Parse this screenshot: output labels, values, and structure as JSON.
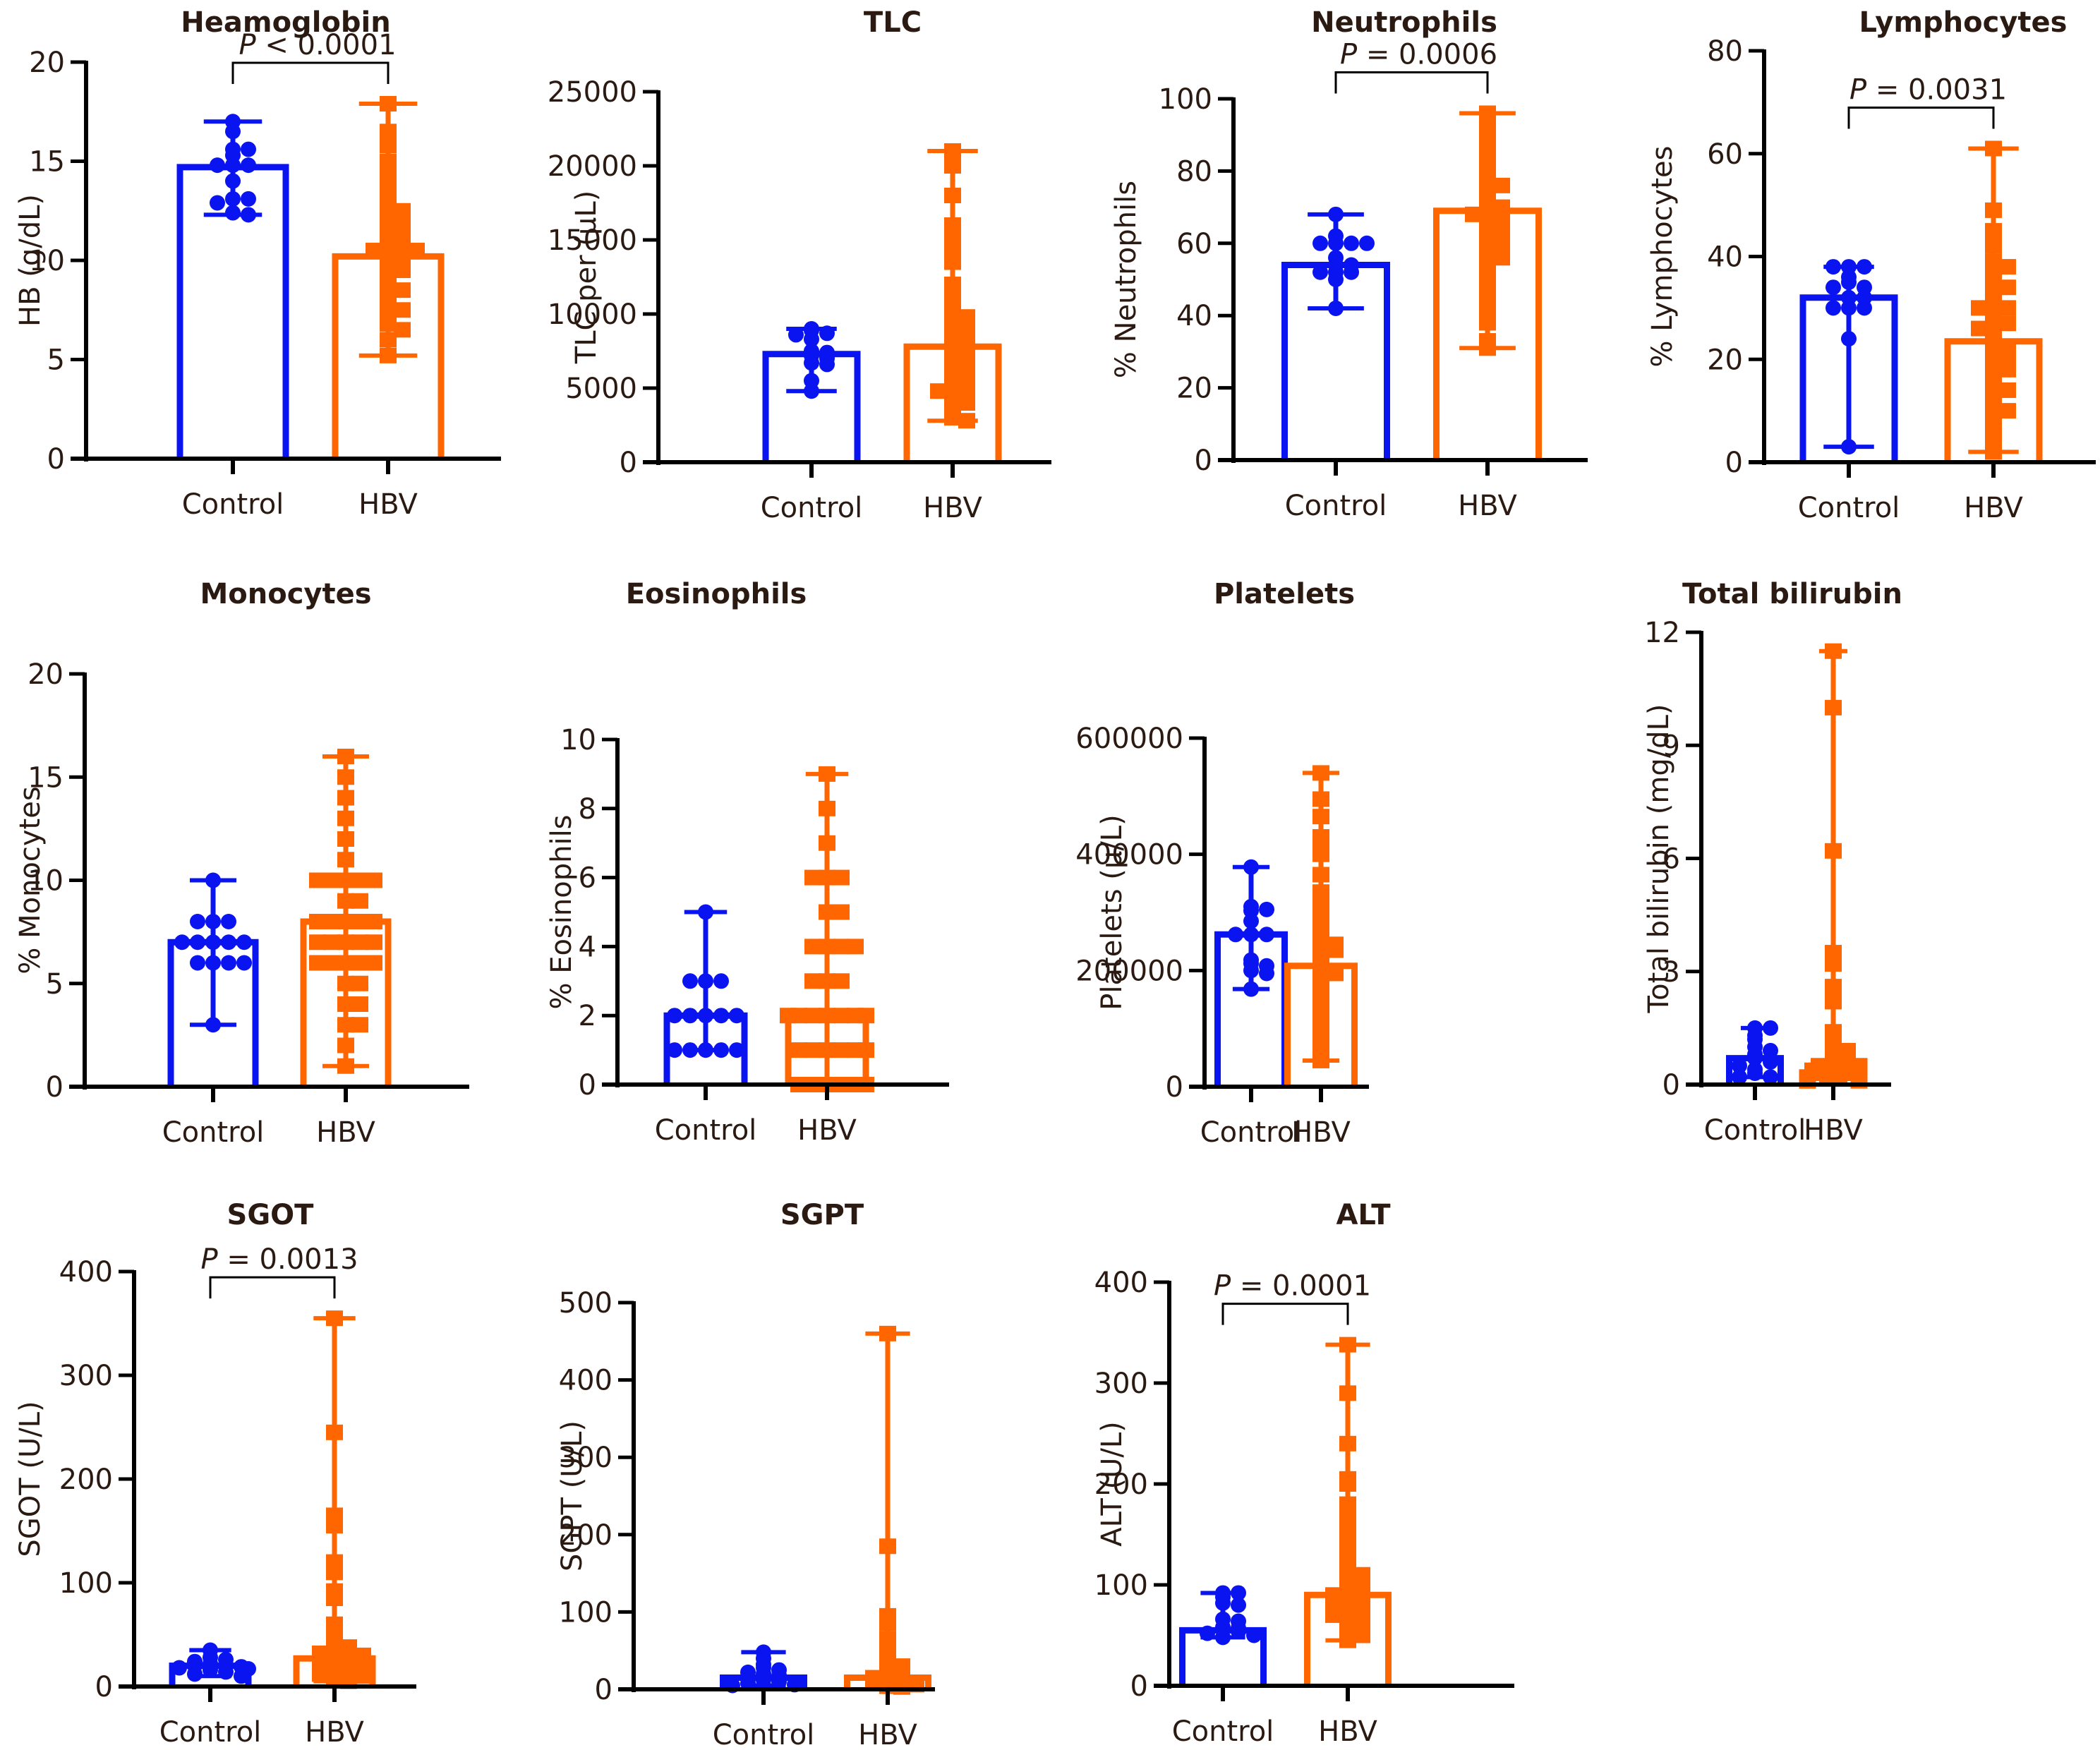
{
  "figure": {
    "colors": {
      "control": "#0a14f0",
      "hbv": "#ff6600",
      "axis": "#000000",
      "text": "#2b1a12"
    },
    "categories": [
      "Control",
      "HBV"
    ]
  },
  "chart_data": [
    {
      "id": "heamoglobin",
      "type": "scatter-bar",
      "title": "Heamoglobin",
      "ylabel": "HB (g/dL)",
      "ylim": [
        0,
        20
      ],
      "yticks": [
        0,
        5,
        10,
        15,
        20
      ],
      "categories": [
        "Control",
        "HBV"
      ],
      "pvalue": {
        "sign": "<",
        "value": "0.0001",
        "text": "P < 0.0001"
      },
      "series": [
        {
          "name": "Control",
          "mean": 14.7,
          "err_low": 12.3,
          "err_high": 17.0,
          "marker": "circle",
          "points": [
            17.0,
            16.5,
            15.6,
            15.6,
            15.3,
            14.8,
            14.8,
            14.8,
            14.0,
            13.1,
            13.1,
            12.9,
            12.4,
            12.3
          ]
        },
        {
          "name": "HBV",
          "mean": 10.2,
          "err_low": 5.2,
          "err_high": 17.9,
          "marker": "square",
          "points": [
            17.9,
            16.5,
            16.0,
            15.8,
            15.0,
            14.5,
            14.0,
            13.5,
            13.2,
            12.8,
            12.5,
            12.2,
            12.0,
            12.0,
            11.8,
            11.5,
            11.2,
            11.0,
            11.0,
            10.8,
            10.8,
            10.5,
            10.5,
            10.3,
            10.2,
            10.0,
            10.0,
            9.8,
            9.5,
            9.2,
            9.0,
            8.8,
            8.5,
            8.3,
            8.0,
            7.8,
            7.5,
            7.2,
            7.0,
            6.8,
            6.5,
            6.0,
            5.2
          ]
        }
      ]
    },
    {
      "id": "tlc",
      "type": "scatter-bar",
      "title": "TLC",
      "ylabel": "TLC per (μL)",
      "ylim": [
        0,
        25000
      ],
      "yticks": [
        0,
        5000,
        10000,
        15000,
        20000,
        25000
      ],
      "categories": [
        "Control",
        "HBV"
      ],
      "pvalue": null,
      "series": [
        {
          "name": "Control",
          "mean": 7300,
          "err_low": 4800,
          "err_high": 9000,
          "marker": "circle",
          "points": [
            9000,
            8900,
            8700,
            8600,
            8300,
            7500,
            7400,
            7200,
            7000,
            6700,
            6600,
            5500,
            4800
          ]
        },
        {
          "name": "HBV",
          "mean": 7800,
          "err_low": 2800,
          "err_high": 21000,
          "marker": "square",
          "points": [
            21000,
            20000,
            18000,
            16000,
            15500,
            15000,
            14500,
            13500,
            12000,
            11000,
            10500,
            10000,
            9800,
            9500,
            9200,
            9000,
            8800,
            8500,
            8200,
            8000,
            7800,
            7600,
            7400,
            7200,
            7000,
            6800,
            6600,
            6400,
            6200,
            6000,
            5800,
            5600,
            5400,
            5200,
            5000,
            4800,
            4500,
            4200,
            4000,
            3700,
            3400,
            3000,
            2800
          ]
        }
      ]
    },
    {
      "id": "neutrophils",
      "type": "scatter-bar",
      "title": "Neutrophils",
      "ylabel": "% Neutrophils",
      "ylim": [
        0,
        100
      ],
      "yticks": [
        0,
        20,
        40,
        60,
        80,
        100
      ],
      "categories": [
        "Control",
        "HBV"
      ],
      "pvalue": {
        "sign": "=",
        "value": "0.0006",
        "text": "P = 0.0006"
      },
      "series": [
        {
          "name": "Control",
          "mean": 54,
          "err_low": 42,
          "err_high": 68,
          "marker": "circle",
          "points": [
            68,
            62,
            60,
            60,
            60,
            60,
            56,
            54,
            54,
            52,
            52,
            52,
            50,
            42
          ]
        },
        {
          "name": "HBV",
          "mean": 69,
          "err_low": 31,
          "err_high": 96,
          "marker": "square",
          "points": [
            96,
            93,
            90,
            88,
            85,
            82,
            80,
            78,
            76,
            76,
            75,
            73,
            72,
            70,
            70,
            69,
            68,
            68,
            67,
            66,
            65,
            64,
            63,
            62,
            61,
            60,
            59,
            58,
            57,
            56,
            55,
            53,
            52,
            50,
            48,
            46,
            44,
            40,
            38,
            33,
            31
          ]
        }
      ]
    },
    {
      "id": "lymphocytes",
      "type": "scatter-bar",
      "title": "Lymphocytes",
      "ylabel": "% Lymphocytes",
      "ylim": [
        0,
        80
      ],
      "yticks": [
        0,
        20,
        40,
        60,
        80
      ],
      "categories": [
        "Control",
        "HBV"
      ],
      "pvalue": {
        "sign": "=",
        "value": "0.0031",
        "text": "P = 0.0031"
      },
      "series": [
        {
          "name": "Control",
          "mean": 32,
          "err_low": 3,
          "err_high": 38,
          "marker": "circle",
          "points": [
            38,
            38,
            38,
            36,
            35,
            34,
            34,
            32,
            32,
            30,
            30,
            30,
            24,
            3
          ]
        },
        {
          "name": "HBV",
          "mean": 23.5,
          "err_low": 2,
          "err_high": 61,
          "marker": "square",
          "points": [
            61,
            49,
            45,
            42,
            39,
            38,
            37,
            35,
            34,
            33,
            32,
            31,
            30,
            30,
            29,
            28,
            27,
            27,
            26,
            25,
            24,
            23,
            22,
            21,
            20,
            20,
            19,
            18,
            17,
            16,
            15,
            14,
            13,
            12,
            11,
            10,
            9,
            8,
            6,
            5,
            4,
            2
          ]
        }
      ]
    },
    {
      "id": "monocytes",
      "type": "scatter-bar",
      "title": "Monocytes",
      "ylabel": "% Monocytes",
      "ylim": [
        0,
        20
      ],
      "yticks": [
        0,
        5,
        10,
        15,
        20
      ],
      "categories": [
        "Control",
        "HBV"
      ],
      "pvalue": null,
      "series": [
        {
          "name": "Control",
          "mean": 7,
          "err_low": 3,
          "err_high": 10,
          "marker": "circle",
          "points": [
            10,
            8,
            8,
            8,
            7,
            7,
            7,
            7,
            7,
            6,
            6,
            6,
            6,
            3
          ]
        },
        {
          "name": "HBV",
          "mean": 8,
          "err_low": 1,
          "err_high": 16,
          "marker": "square",
          "points": [
            16,
            15,
            14,
            13,
            12,
            11,
            10,
            10,
            10,
            10,
            10,
            9,
            9,
            8,
            8,
            8,
            8,
            8,
            7,
            7,
            7,
            7,
            7,
            6,
            6,
            6,
            6,
            6,
            5,
            5,
            4,
            4,
            3,
            3,
            2,
            1
          ]
        }
      ]
    },
    {
      "id": "eosinophils",
      "type": "scatter-bar",
      "title": "Eosinophils",
      "ylabel": "% Eosinophils",
      "ylim": [
        0,
        10
      ],
      "yticks": [
        0,
        2,
        4,
        6,
        8,
        10
      ],
      "categories": [
        "Control",
        "HBV"
      ],
      "pvalue": null,
      "series": [
        {
          "name": "Control",
          "mean": 2,
          "err_low": 1,
          "err_high": 5,
          "marker": "circle",
          "points": [
            5,
            3,
            3,
            3,
            2,
            2,
            2,
            2,
            2,
            1,
            1,
            1,
            1,
            1
          ]
        },
        {
          "name": "HBV",
          "mean": 2,
          "err_low": 0,
          "err_high": 9,
          "marker": "square",
          "points": [
            9,
            8,
            7,
            6,
            6,
            6,
            5,
            5,
            4,
            4,
            4,
            4,
            3,
            3,
            3,
            2,
            2,
            2,
            2,
            2,
            2,
            2,
            1,
            1,
            1,
            1,
            1,
            1,
            0,
            0,
            0,
            0,
            0,
            0
          ]
        }
      ]
    },
    {
      "id": "platelets",
      "type": "scatter-bar",
      "title": "Platelets",
      "ylabel": "Platelets (μ/L)",
      "ylim": [
        0,
        600000
      ],
      "yticks": [
        0,
        200000,
        400000,
        600000
      ],
      "categories": [
        "Control",
        "HBV"
      ],
      "pvalue": null,
      "series": [
        {
          "name": "Control",
          "mean": 262000,
          "err_low": 168000,
          "err_high": 378000,
          "marker": "circle",
          "points": [
            378000,
            310000,
            305000,
            303000,
            285000,
            262000,
            262000,
            262000,
            218000,
            212000,
            208000,
            200000,
            195000,
            168000
          ]
        },
        {
          "name": "HBV",
          "mean": 208000,
          "err_low": 45000,
          "err_high": 540000,
          "marker": "square",
          "points": [
            540000,
            495000,
            465000,
            430000,
            412000,
            400000,
            365000,
            335000,
            320000,
            300000,
            290000,
            280000,
            270000,
            260000,
            250000,
            245000,
            240000,
            235000,
            225000,
            215000,
            210000,
            200000,
            195000,
            185000,
            180000,
            170000,
            160000,
            150000,
            140000,
            130000,
            120000,
            105000,
            95000,
            85000,
            75000,
            60000,
            45000
          ]
        }
      ]
    },
    {
      "id": "total-bilirubin",
      "type": "scatter-bar",
      "title": "Total bilirubin",
      "ylabel": "Total bilirubin (mg/dL)",
      "ylim": [
        0,
        12
      ],
      "yticks": [
        0,
        3,
        6,
        9,
        12
      ],
      "categories": [
        "Control",
        "HBV"
      ],
      "pvalue": null,
      "series": [
        {
          "name": "Control",
          "mean": 0.7,
          "err_low": 0.2,
          "err_high": 1.5,
          "marker": "circle",
          "points": [
            1.5,
            1.5,
            1.3,
            1.2,
            1.0,
            0.9,
            0.8,
            0.7,
            0.6,
            0.5,
            0.4,
            0.3,
            0.2,
            0.2
          ]
        },
        {
          "name": "HBV",
          "mean": 0.5,
          "err_low": 0.1,
          "err_high": 11.5,
          "marker": "square",
          "points": [
            11.5,
            10.0,
            6.2,
            3.5,
            3.2,
            2.6,
            2.2,
            1.4,
            1.2,
            1.0,
            0.9,
            0.8,
            0.7,
            0.6,
            0.5,
            0.5,
            0.4,
            0.4,
            0.3,
            0.3,
            0.3,
            0.2,
            0.2,
            0.2,
            0.1,
            0.1,
            0.1
          ]
        }
      ]
    },
    {
      "id": "sgot",
      "type": "scatter-bar",
      "title": "SGOT",
      "ylabel": "SGOT (U/L)",
      "ylim": [
        0,
        400
      ],
      "yticks": [
        0,
        100,
        200,
        300,
        400
      ],
      "categories": [
        "Control",
        "HBV"
      ],
      "pvalue": {
        "sign": "=",
        "value": "0.0013",
        "text": "P = 0.0013"
      },
      "series": [
        {
          "name": "Control",
          "mean": 20,
          "err_low": 10,
          "err_high": 35,
          "marker": "circle",
          "points": [
            35,
            28,
            26,
            24,
            22,
            20,
            20,
            19,
            18,
            17,
            16,
            14,
            12,
            10
          ]
        },
        {
          "name": "HBV",
          "mean": 27,
          "err_low": 5,
          "err_high": 355,
          "marker": "square",
          "points": [
            355,
            245,
            165,
            155,
            120,
            110,
            92,
            85,
            60,
            50,
            42,
            38,
            36,
            34,
            32,
            30,
            28,
            26,
            25,
            24,
            22,
            20,
            18,
            16,
            14,
            12,
            10,
            8,
            5
          ]
        }
      ]
    },
    {
      "id": "sgpt",
      "type": "scatter-bar",
      "title": "SGPT",
      "ylabel": "SGPT (U/L)",
      "ylim": [
        0,
        500
      ],
      "yticks": [
        0,
        100,
        200,
        300,
        400,
        500
      ],
      "categories": [
        "Control",
        "HBV"
      ],
      "pvalue": null,
      "series": [
        {
          "name": "Control",
          "mean": 15,
          "err_low": 5,
          "err_high": 48,
          "marker": "circle",
          "points": [
            48,
            40,
            32,
            28,
            25,
            22,
            20,
            18,
            15,
            12,
            10,
            8,
            6,
            5
          ]
        },
        {
          "name": "HBV",
          "mean": 15,
          "err_low": 3,
          "err_high": 460,
          "marker": "square",
          "points": [
            460,
            185,
            95,
            85,
            65,
            55,
            40,
            35,
            30,
            25,
            22,
            20,
            18,
            15,
            12,
            10,
            8,
            6,
            4,
            3
          ]
        }
      ]
    },
    {
      "id": "alt",
      "type": "scatter-bar",
      "title": "ALT",
      "ylabel": "ALT (U/L)",
      "ylim": [
        0,
        400
      ],
      "yticks": [
        0,
        100,
        200,
        300,
        400
      ],
      "categories": [
        "Control",
        "HBV"
      ],
      "pvalue": {
        "sign": "=",
        "value": "0.0001",
        "text": "P = 0.0001"
      },
      "series": [
        {
          "name": "Control",
          "mean": 55,
          "err_low": 48,
          "err_high": 92,
          "marker": "circle",
          "points": [
            92,
            92,
            88,
            82,
            80,
            66,
            64,
            58,
            57,
            56,
            54,
            52,
            50,
            48
          ]
        },
        {
          "name": "HBV",
          "mean": 90,
          "err_low": 45,
          "err_high": 338,
          "marker": "square",
          "points": [
            338,
            290,
            240,
            205,
            200,
            180,
            170,
            160,
            150,
            140,
            130,
            125,
            120,
            115,
            110,
            105,
            100,
            98,
            95,
            92,
            90,
            88,
            85,
            82,
            80,
            78,
            75,
            72,
            70,
            68,
            65,
            62,
            60,
            55,
            50,
            45
          ]
        }
      ]
    }
  ]
}
